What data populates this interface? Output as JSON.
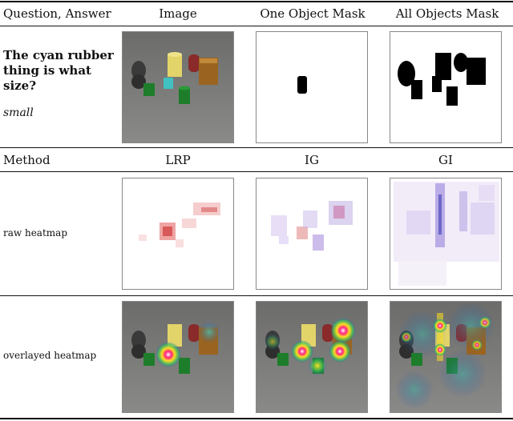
{
  "header_row1": {
    "question_answer": "Question, Answer",
    "image": "Image",
    "one_object_mask": "One Object Mask",
    "all_objects_mask": "All Objects Mask"
  },
  "example": {
    "question": "The cyan rubber thing is what size?",
    "answer": "small"
  },
  "header_row2": {
    "method": "Method",
    "lrp": "LRP",
    "ig": "IG",
    "gi": "GI"
  },
  "rows": {
    "raw_heatmap": "raw heatmap",
    "overlayed_heatmap": "overlayed heatmap"
  }
}
